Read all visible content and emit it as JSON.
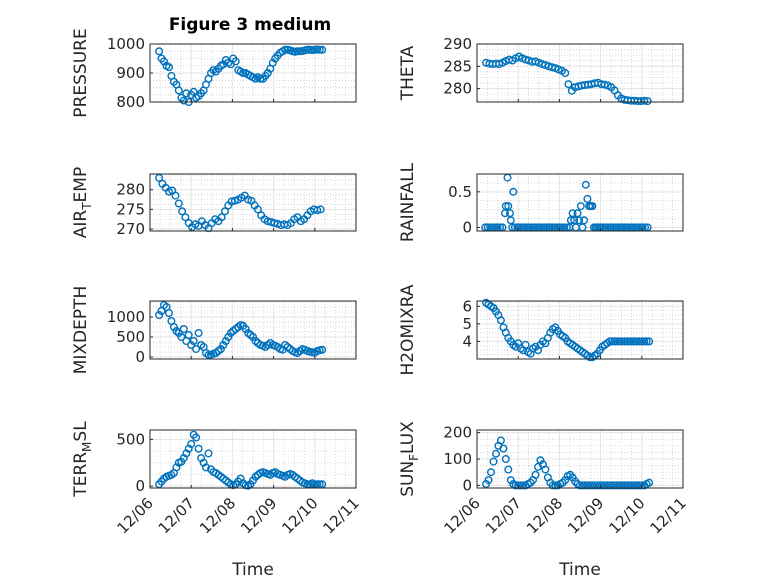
{
  "title": "Figure 3 medium",
  "xlabel": "Time",
  "x_tick_labels": [
    "12/06",
    "12/07",
    "12/08",
    "12/09",
    "12/10",
    "12/11"
  ],
  "colors": {
    "marker": "#0072bd",
    "grid": "#e3e3e3",
    "axis": "#262626"
  },
  "chart_data": [
    {
      "type": "scatter",
      "ylabel": "PRESSURE",
      "ylim": [
        800,
        1000
      ],
      "yticks": [
        800,
        900,
        1000
      ],
      "x": [
        0.22,
        0.28,
        0.34,
        0.4,
        0.46,
        0.52,
        0.58,
        0.64,
        0.7,
        0.76,
        0.82,
        0.88,
        0.94,
        1.0,
        1.06,
        1.12,
        1.18,
        1.24,
        1.3,
        1.36,
        1.42,
        1.48,
        1.54,
        1.6,
        1.66,
        1.72,
        1.78,
        1.84,
        1.9,
        1.96,
        2.02,
        2.08,
        2.14,
        2.2,
        2.26,
        2.32,
        2.38,
        2.44,
        2.5,
        2.56,
        2.62,
        2.68,
        2.74,
        2.8,
        2.86,
        2.92,
        2.98,
        3.04,
        3.1,
        3.16,
        3.22,
        3.28,
        3.34,
        3.4,
        3.46,
        3.52,
        3.58,
        3.64,
        3.7,
        3.76,
        3.82,
        3.88,
        3.94,
        4.0,
        4.06,
        4.12,
        4.18
      ],
      "y": [
        975,
        950,
        940,
        925,
        920,
        890,
        870,
        860,
        840,
        815,
        805,
        830,
        800,
        825,
        835,
        815,
        820,
        830,
        840,
        860,
        880,
        900,
        910,
        905,
        915,
        925,
        930,
        945,
        935,
        930,
        950,
        940,
        910,
        905,
        900,
        900,
        895,
        890,
        885,
        880,
        885,
        880,
        880,
        890,
        900,
        915,
        935,
        950,
        960,
        970,
        975,
        980,
        980,
        978,
        975,
        973,
        975,
        975,
        976,
        978,
        980,
        980,
        979,
        980,
        981,
        980,
        980
      ]
    },
    {
      "type": "scatter",
      "ylabel": "THETA",
      "ylim": [
        277,
        290
      ],
      "yticks": [
        280,
        285,
        290
      ],
      "x": [
        0.22,
        0.3,
        0.38,
        0.46,
        0.54,
        0.62,
        0.7,
        0.78,
        0.86,
        0.94,
        1.02,
        1.1,
        1.18,
        1.26,
        1.34,
        1.42,
        1.5,
        1.58,
        1.66,
        1.74,
        1.82,
        1.9,
        1.98,
        2.06,
        2.14,
        2.22,
        2.3,
        2.38,
        2.46,
        2.54,
        2.62,
        2.7,
        2.78,
        2.86,
        2.94,
        3.02,
        3.1,
        3.18,
        3.26,
        3.34,
        3.42,
        3.5,
        3.58,
        3.66,
        3.74,
        3.82,
        3.9,
        3.98,
        4.06,
        4.14
      ],
      "y": [
        285.8,
        285.6,
        285.5,
        285.6,
        285.5,
        285.8,
        286.2,
        286.5,
        286.3,
        286.8,
        287.2,
        286.8,
        286.5,
        286.3,
        286.0,
        286.1,
        285.8,
        285.5,
        285.3,
        285.0,
        284.8,
        284.6,
        284.3,
        284.0,
        283.5,
        281.0,
        279.5,
        280.3,
        280.5,
        280.7,
        280.8,
        280.9,
        281.0,
        281.2,
        281.3,
        281.0,
        280.9,
        280.7,
        280.3,
        279.6,
        278.5,
        277.8,
        277.5,
        277.4,
        277.3,
        277.3,
        277.2,
        277.2,
        277.3,
        277.2
      ]
    },
    {
      "type": "scatter",
      "ylabel": "AIR_TEMP",
      "ylim": [
        269.5,
        284
      ],
      "yticks": [
        270,
        275,
        280
      ],
      "x": [
        0.22,
        0.3,
        0.38,
        0.46,
        0.54,
        0.62,
        0.7,
        0.78,
        0.86,
        0.94,
        1.02,
        1.1,
        1.18,
        1.26,
        1.34,
        1.42,
        1.5,
        1.58,
        1.66,
        1.74,
        1.82,
        1.9,
        1.98,
        2.06,
        2.14,
        2.22,
        2.3,
        2.38,
        2.46,
        2.54,
        2.62,
        2.7,
        2.78,
        2.86,
        2.94,
        3.02,
        3.1,
        3.18,
        3.26,
        3.34,
        3.42,
        3.5,
        3.58,
        3.66,
        3.74,
        3.82,
        3.9,
        3.98,
        4.06,
        4.14
      ],
      "y": [
        283.0,
        281.5,
        280.5,
        279.5,
        279.8,
        278.5,
        276.5,
        274.5,
        273.0,
        271.5,
        270.5,
        271.2,
        270.8,
        272.0,
        271.0,
        270.2,
        271.5,
        272.5,
        272.0,
        273.0,
        274.5,
        276.0,
        277.0,
        277.2,
        277.5,
        278.0,
        278.5,
        277.5,
        277.2,
        276.0,
        275.0,
        273.5,
        272.5,
        272.0,
        271.8,
        271.5,
        271.3,
        271.0,
        271.2,
        271.0,
        271.5,
        272.5,
        273.0,
        272.0,
        272.5,
        273.5,
        274.5,
        275.0,
        274.8,
        275.0
      ]
    },
    {
      "type": "scatter",
      "ylabel": "RAINFALL",
      "ylim": [
        -0.05,
        0.75
      ],
      "yticks": [
        0,
        0.5
      ],
      "x": [
        0.2,
        0.26,
        0.32,
        0.38,
        0.44,
        0.5,
        0.56,
        0.62,
        0.68,
        0.7,
        0.74,
        0.76,
        0.8,
        0.82,
        0.86,
        0.88,
        0.92,
        0.98,
        1.04,
        1.1,
        1.16,
        1.22,
        1.28,
        1.34,
        1.4,
        1.46,
        1.52,
        1.58,
        1.64,
        1.7,
        1.76,
        1.82,
        1.88,
        1.94,
        2.0,
        2.06,
        2.12,
        2.18,
        2.24,
        2.28,
        2.32,
        2.36,
        2.4,
        2.44,
        2.48,
        2.52,
        2.56,
        2.6,
        2.64,
        2.68,
        2.72,
        2.76,
        2.8,
        2.84,
        2.88,
        2.92,
        2.96,
        3.0,
        3.06,
        3.12,
        3.18,
        3.24,
        3.3,
        3.36,
        3.42,
        3.48,
        3.54,
        3.6,
        3.66,
        3.72,
        3.78,
        3.84,
        3.9,
        3.96,
        4.02,
        4.08,
        4.14
      ],
      "y": [
        0,
        0,
        0,
        0,
        0,
        0,
        0,
        0,
        0.2,
        0.3,
        0.7,
        0.3,
        0.2,
        0.1,
        0,
        0.5,
        0,
        0,
        0,
        0,
        0,
        0,
        0,
        0,
        0,
        0,
        0,
        0,
        0,
        0,
        0,
        0,
        0,
        0,
        0,
        0,
        0,
        0,
        0,
        0.1,
        0.2,
        0.1,
        0,
        0.2,
        0.1,
        0.3,
        0,
        0.1,
        0.6,
        0.4,
        0.3,
        0.3,
        0.3,
        0,
        0,
        0,
        0,
        0,
        0,
        0,
        0,
        0,
        0,
        0,
        0,
        0,
        0,
        0,
        0,
        0,
        0,
        0,
        0,
        0,
        0,
        0,
        0
      ]
    },
    {
      "type": "scatter",
      "ylabel": "MIXDEPTH",
      "ylim": [
        -50,
        1400
      ],
      "yticks": [
        0,
        500,
        1000
      ],
      "x": [
        0.22,
        0.28,
        0.34,
        0.4,
        0.46,
        0.52,
        0.58,
        0.64,
        0.7,
        0.76,
        0.82,
        0.88,
        0.94,
        1.0,
        1.06,
        1.12,
        1.18,
        1.24,
        1.3,
        1.36,
        1.42,
        1.48,
        1.54,
        1.6,
        1.66,
        1.72,
        1.78,
        1.84,
        1.9,
        1.96,
        2.02,
        2.08,
        2.14,
        2.2,
        2.26,
        2.32,
        2.38,
        2.44,
        2.5,
        2.56,
        2.62,
        2.68,
        2.74,
        2.8,
        2.86,
        2.92,
        2.98,
        3.04,
        3.1,
        3.16,
        3.22,
        3.28,
        3.34,
        3.4,
        3.46,
        3.52,
        3.58,
        3.64,
        3.7,
        3.76,
        3.82,
        3.88,
        3.94,
        4.0,
        4.06,
        4.12,
        4.18
      ],
      "y": [
        1050,
        1150,
        1300,
        1250,
        1100,
        900,
        750,
        650,
        600,
        500,
        700,
        400,
        550,
        300,
        400,
        200,
        600,
        300,
        250,
        100,
        50,
        60,
        80,
        100,
        150,
        200,
        300,
        400,
        500,
        600,
        650,
        700,
        750,
        800,
        780,
        700,
        600,
        550,
        500,
        400,
        350,
        300,
        280,
        250,
        300,
        350,
        300,
        280,
        250,
        200,
        180,
        300,
        250,
        200,
        150,
        120,
        100,
        150,
        200,
        180,
        150,
        130,
        120,
        110,
        150,
        170,
        180
      ]
    },
    {
      "type": "scatter",
      "ylabel": "H2OMIXRA",
      "ylim": [
        3.0,
        6.3
      ],
      "yticks": [
        4,
        5,
        6
      ],
      "x": [
        0.22,
        0.28,
        0.34,
        0.4,
        0.46,
        0.52,
        0.58,
        0.64,
        0.7,
        0.76,
        0.82,
        0.88,
        0.94,
        1.0,
        1.06,
        1.12,
        1.18,
        1.24,
        1.3,
        1.36,
        1.42,
        1.48,
        1.54,
        1.6,
        1.66,
        1.72,
        1.78,
        1.84,
        1.9,
        1.96,
        2.02,
        2.08,
        2.14,
        2.2,
        2.26,
        2.32,
        2.38,
        2.44,
        2.5,
        2.56,
        2.62,
        2.68,
        2.74,
        2.8,
        2.86,
        2.92,
        2.98,
        3.04,
        3.1,
        3.16,
        3.22,
        3.28,
        3.34,
        3.4,
        3.46,
        3.52,
        3.58,
        3.64,
        3.7,
        3.76,
        3.82,
        3.88,
        3.94,
        4.0,
        4.06,
        4.12,
        4.18
      ],
      "y": [
        6.2,
        6.1,
        6.0,
        5.9,
        5.7,
        5.5,
        5.2,
        4.8,
        4.5,
        4.2,
        4.0,
        3.8,
        3.7,
        3.9,
        3.6,
        3.5,
        3.8,
        3.4,
        3.3,
        3.6,
        3.7,
        3.5,
        3.8,
        4.0,
        3.9,
        4.2,
        4.5,
        4.7,
        4.8,
        4.6,
        4.4,
        4.3,
        4.2,
        4.0,
        3.9,
        3.8,
        3.7,
        3.6,
        3.5,
        3.4,
        3.3,
        3.2,
        3.1,
        3.1,
        3.2,
        3.3,
        3.5,
        3.7,
        3.8,
        3.9,
        4.0,
        4.0,
        4.0,
        4.0,
        4.0,
        4.0,
        4.0,
        4.0,
        4.0,
        4.0,
        4.0,
        4.0,
        4.0,
        4.0,
        4.0,
        4.0,
        4.0
      ]
    },
    {
      "type": "scatter",
      "ylabel": "TERR_MSL",
      "ylim": [
        -20,
        600
      ],
      "yticks": [
        0,
        500
      ],
      "x": [
        0.22,
        0.28,
        0.34,
        0.4,
        0.46,
        0.52,
        0.58,
        0.64,
        0.7,
        0.76,
        0.82,
        0.88,
        0.94,
        1.0,
        1.06,
        1.12,
        1.18,
        1.24,
        1.3,
        1.36,
        1.42,
        1.48,
        1.54,
        1.6,
        1.66,
        1.72,
        1.78,
        1.84,
        1.9,
        1.96,
        2.02,
        2.08,
        2.14,
        2.2,
        2.26,
        2.32,
        2.38,
        2.44,
        2.5,
        2.56,
        2.62,
        2.68,
        2.74,
        2.8,
        2.86,
        2.92,
        2.98,
        3.04,
        3.1,
        3.16,
        3.22,
        3.28,
        3.34,
        3.4,
        3.46,
        3.52,
        3.58,
        3.64,
        3.7,
        3.76,
        3.82,
        3.88,
        3.94,
        4.0,
        4.06,
        4.12,
        4.18
      ],
      "y": [
        20,
        50,
        80,
        100,
        110,
        120,
        140,
        200,
        250,
        260,
        300,
        350,
        400,
        450,
        550,
        520,
        400,
        300,
        250,
        200,
        350,
        180,
        150,
        140,
        120,
        100,
        80,
        60,
        40,
        20,
        10,
        20,
        50,
        80,
        30,
        10,
        5,
        20,
        60,
        100,
        120,
        140,
        150,
        140,
        130,
        120,
        140,
        150,
        130,
        120,
        110,
        100,
        120,
        130,
        120,
        100,
        80,
        60,
        40,
        30,
        20,
        20,
        30,
        20,
        20,
        20,
        20
      ]
    },
    {
      "type": "scatter",
      "ylabel": "SUN_FLUX",
      "ylim": [
        -10,
        210
      ],
      "yticks": [
        0,
        100,
        200
      ],
      "x": [
        0.22,
        0.28,
        0.34,
        0.4,
        0.46,
        0.52,
        0.58,
        0.64,
        0.7,
        0.76,
        0.82,
        0.88,
        0.94,
        1.0,
        1.06,
        1.12,
        1.18,
        1.24,
        1.3,
        1.36,
        1.42,
        1.48,
        1.54,
        1.6,
        1.66,
        1.72,
        1.78,
        1.84,
        1.9,
        1.96,
        2.02,
        2.08,
        2.14,
        2.2,
        2.26,
        2.32,
        2.38,
        2.44,
        2.5,
        2.56,
        2.62,
        2.68,
        2.74,
        2.8,
        2.86,
        2.92,
        2.98,
        3.04,
        3.1,
        3.16,
        3.22,
        3.28,
        3.34,
        3.4,
        3.46,
        3.52,
        3.58,
        3.64,
        3.7,
        3.76,
        3.82,
        3.88,
        3.94,
        4.0,
        4.06,
        4.12,
        4.18
      ],
      "y": [
        5,
        20,
        50,
        90,
        120,
        150,
        170,
        140,
        100,
        60,
        20,
        5,
        0,
        0,
        0,
        0,
        0,
        5,
        10,
        20,
        40,
        70,
        95,
        80,
        60,
        30,
        10,
        0,
        0,
        0,
        5,
        10,
        20,
        35,
        40,
        30,
        15,
        5,
        0,
        0,
        0,
        0,
        0,
        0,
        0,
        0,
        0,
        0,
        0,
        0,
        0,
        0,
        0,
        0,
        0,
        0,
        0,
        0,
        0,
        0,
        0,
        0,
        0,
        0,
        0,
        5,
        10
      ]
    }
  ]
}
